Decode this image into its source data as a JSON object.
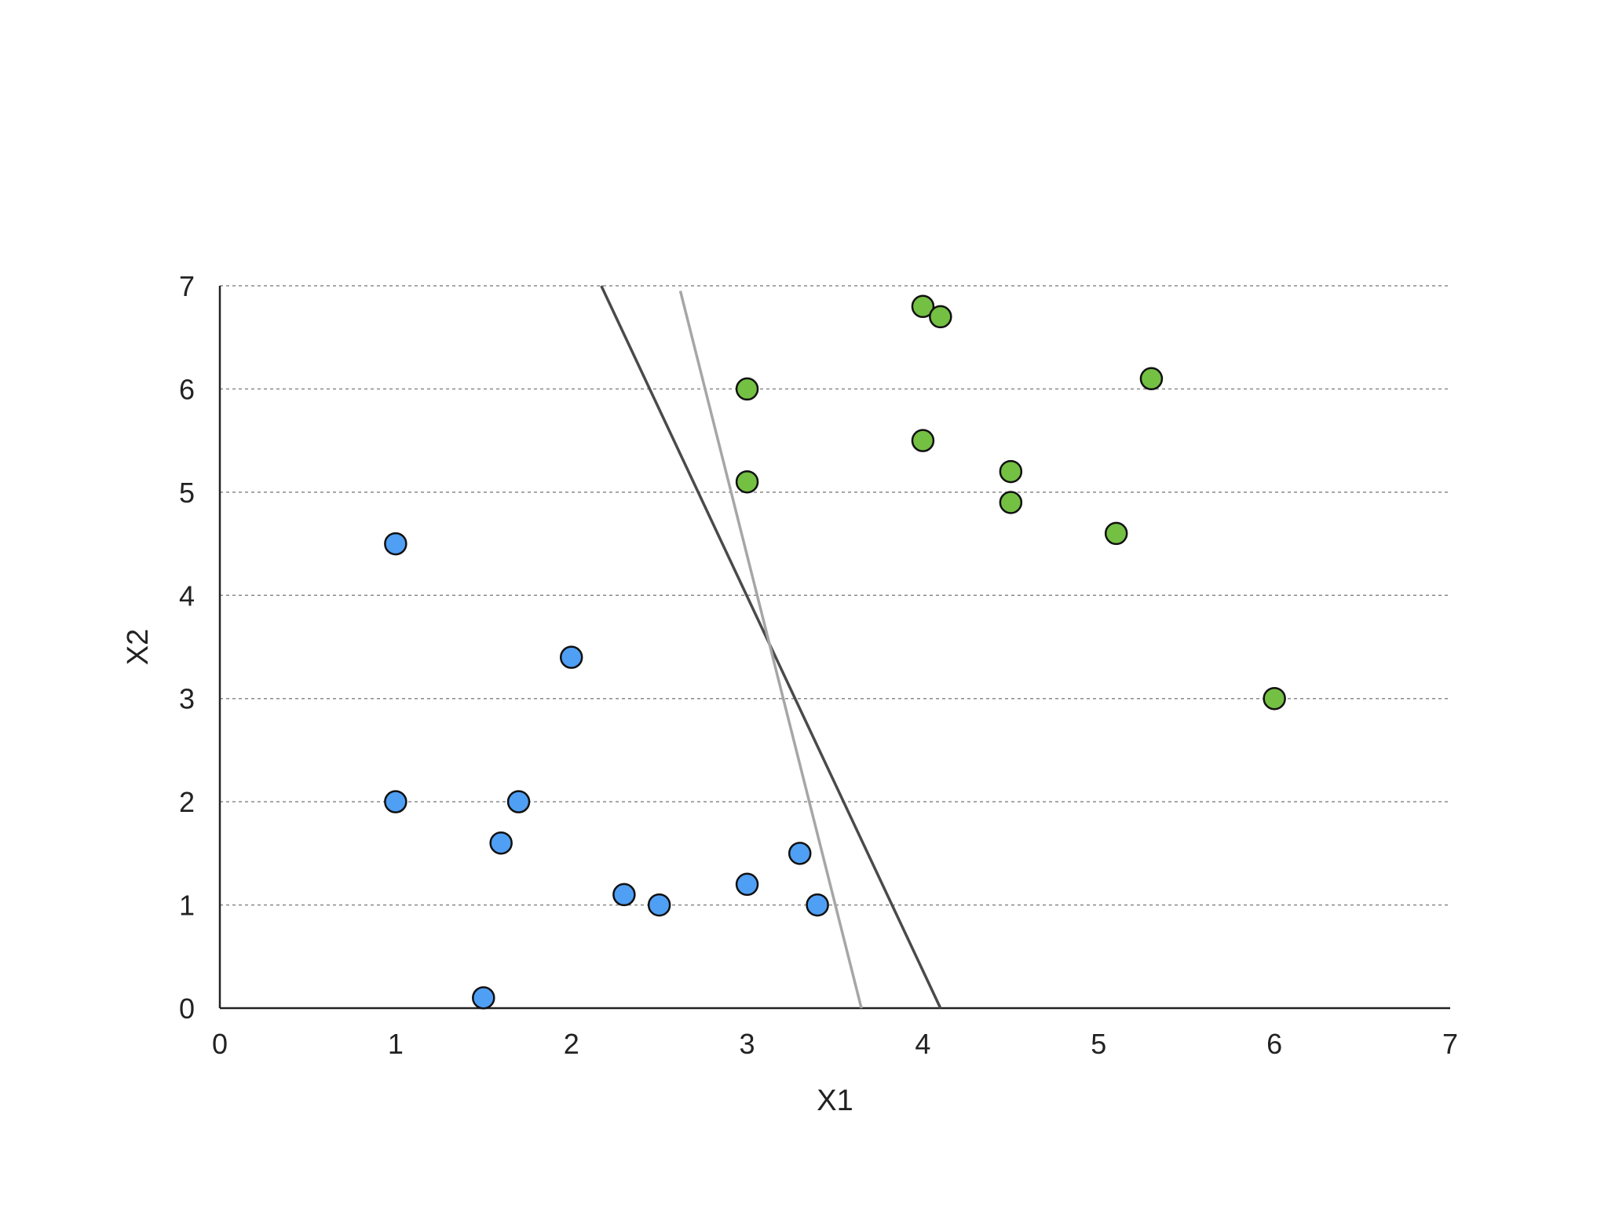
{
  "chart_data": {
    "type": "scatter",
    "title": "",
    "xlabel": "X1",
    "ylabel": "X2",
    "xlim": [
      0,
      7
    ],
    "ylim": [
      0,
      7
    ],
    "x_ticks": [
      "0",
      "1",
      "2",
      "3",
      "4",
      "5",
      "6",
      "7"
    ],
    "y_ticks": [
      "0",
      "1",
      "2",
      "3",
      "4",
      "5",
      "6",
      "7"
    ],
    "grid": "horizontal-dashed",
    "series": [
      {
        "color": "#4f9ff5",
        "points": [
          {
            "x": 1.0,
            "y": 4.5
          },
          {
            "x": 2.0,
            "y": 3.4
          },
          {
            "x": 1.0,
            "y": 2.0
          },
          {
            "x": 1.7,
            "y": 2.0
          },
          {
            "x": 1.6,
            "y": 1.6
          },
          {
            "x": 2.3,
            "y": 1.1
          },
          {
            "x": 2.5,
            "y": 1.0
          },
          {
            "x": 3.0,
            "y": 1.2
          },
          {
            "x": 3.3,
            "y": 1.5
          },
          {
            "x": 3.4,
            "y": 1.0
          },
          {
            "x": 1.5,
            "y": 0.1
          }
        ]
      },
      {
        "color": "#74c043",
        "points": [
          {
            "x": 4.0,
            "y": 6.8
          },
          {
            "x": 4.1,
            "y": 6.7
          },
          {
            "x": 3.0,
            "y": 6.0
          },
          {
            "x": 5.3,
            "y": 6.1
          },
          {
            "x": 4.0,
            "y": 5.5
          },
          {
            "x": 3.0,
            "y": 5.1
          },
          {
            "x": 4.5,
            "y": 5.2
          },
          {
            "x": 4.5,
            "y": 4.9
          },
          {
            "x": 5.1,
            "y": 4.6
          },
          {
            "x": 6.0,
            "y": 3.0
          }
        ]
      }
    ],
    "lines": [
      {
        "color": "#4a4a4a",
        "from": {
          "x": 2.17,
          "y": 7.0
        },
        "to": {
          "x": 4.1,
          "y": 0.0
        }
      },
      {
        "color": "#a6a6a6",
        "from": {
          "x": 2.62,
          "y": 6.95
        },
        "to": {
          "x": 3.65,
          "y": 0.0
        }
      }
    ]
  }
}
